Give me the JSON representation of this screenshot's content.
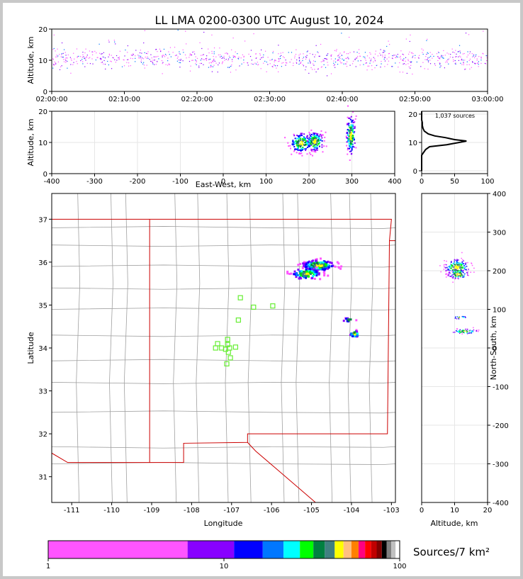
{
  "chart_data": {
    "title": "LL LMA 0200-0300 UTC August 10, 2024",
    "panels": [
      {
        "id": "time-altitude",
        "type": "scatter",
        "xlabel": "",
        "ylabel": "Altitude, km",
        "xticks": [
          "02:00:00",
          "02:10:00",
          "02:20:00",
          "02:30:00",
          "02:40:00",
          "02:50:00",
          "03:00:00"
        ],
        "xlim_minutes": [
          0,
          60
        ],
        "ylim": [
          0,
          20
        ],
        "yticks": [
          0,
          10,
          20
        ],
        "band_altitude_km": [
          6,
          16
        ],
        "band_center_km": 10.5,
        "grid": false
      },
      {
        "id": "eastwest-altitude",
        "type": "scatter",
        "xlabel": "East-West, km",
        "ylabel": "Altitude, km",
        "xlim": [
          -400,
          400
        ],
        "xticks": [
          -400,
          -300,
          -200,
          -100,
          0,
          100,
          200,
          300,
          400
        ],
        "ylim": [
          0,
          20
        ],
        "yticks": [
          0,
          10,
          20
        ],
        "grid": true,
        "clusters": [
          {
            "x": 180,
            "y": 10,
            "sx": 12,
            "sy": 1.5,
            "n": 160
          },
          {
            "x": 212,
            "y": 10.5,
            "sx": 10,
            "sy": 1.5,
            "n": 150
          },
          {
            "x": 296,
            "y": 12.5,
            "sx": 5,
            "sy": 3,
            "n": 150
          }
        ]
      },
      {
        "id": "altitude-histogram",
        "type": "line",
        "annotation": "1,037 sources",
        "xlim": [
          0,
          100
        ],
        "xticks": [
          0,
          50,
          100
        ],
        "ylim": [
          0,
          20
        ],
        "yticks": [
          0,
          10,
          20
        ],
        "profile": [
          {
            "alt": 0,
            "n": 0
          },
          {
            "alt": 5.5,
            "n": 0
          },
          {
            "alt": 6.5,
            "n": 3
          },
          {
            "alt": 7.5,
            "n": 6
          },
          {
            "alt": 8.5,
            "n": 12
          },
          {
            "alt": 9.2,
            "n": 38
          },
          {
            "alt": 10,
            "n": 57
          },
          {
            "alt": 10.5,
            "n": 68
          },
          {
            "alt": 11,
            "n": 50
          },
          {
            "alt": 11.7,
            "n": 36
          },
          {
            "alt": 12.3,
            "n": 20
          },
          {
            "alt": 13,
            "n": 10
          },
          {
            "alt": 14,
            "n": 4
          },
          {
            "alt": 15,
            "n": 2
          },
          {
            "alt": 16,
            "n": 1
          },
          {
            "alt": 17,
            "n": 1
          },
          {
            "alt": 18,
            "n": 0
          },
          {
            "alt": 21,
            "n": 0
          }
        ]
      },
      {
        "id": "plan-view",
        "type": "scatter",
        "xlabel": "Longitude",
        "ylabel": "Latitude",
        "xlim": [
          -111.5,
          -102.9
        ],
        "ylim": [
          30.4,
          37.6
        ],
        "xticks": [
          -111,
          -110,
          -109,
          -108,
          -107,
          -106,
          -105,
          -104,
          -103
        ],
        "yticks": [
          31,
          32,
          33,
          34,
          35,
          36,
          37
        ],
        "state_border_color": "#cc0000",
        "county_color": "#a0a0a0",
        "clusters": [
          {
            "lon": -104.85,
            "lat": 35.95,
            "slon": 0.2,
            "slat": 0.06,
            "n": 170
          },
          {
            "lon": -105.15,
            "lat": 35.75,
            "slon": 0.18,
            "slat": 0.06,
            "n": 110
          },
          {
            "lon": -103.95,
            "lat": 34.35,
            "slon": 0.06,
            "slat": 0.04,
            "n": 40
          },
          {
            "lon": -104.1,
            "lat": 34.68,
            "slon": 0.08,
            "slat": 0.02,
            "n": 14
          }
        ],
        "stations": [
          {
            "lon": -106.78,
            "lat": 35.17
          },
          {
            "lon": -106.45,
            "lat": 34.95
          },
          {
            "lon": -105.97,
            "lat": 34.98
          },
          {
            "lon": -106.83,
            "lat": 34.65
          },
          {
            "lon": -107.1,
            "lat": 34.2
          },
          {
            "lon": -107.35,
            "lat": 34.1
          },
          {
            "lon": -107.1,
            "lat": 34.08
          },
          {
            "lon": -107.4,
            "lat": 34.0
          },
          {
            "lon": -107.25,
            "lat": 34.0
          },
          {
            "lon": -107.15,
            "lat": 33.97
          },
          {
            "lon": -107.05,
            "lat": 34.0
          },
          {
            "lon": -106.9,
            "lat": 34.02
          },
          {
            "lon": -107.08,
            "lat": 33.9
          },
          {
            "lon": -107.03,
            "lat": 33.77
          },
          {
            "lon": -107.12,
            "lat": 33.63
          }
        ]
      },
      {
        "id": "altitude-northsouth",
        "type": "scatter",
        "xlabel": "Altitude, km",
        "ylabel": "North-South, km",
        "xlim": [
          0,
          20
        ],
        "xticks": [
          0,
          10,
          20
        ],
        "ylim": [
          -400,
          400
        ],
        "yticks": [
          -400,
          -300,
          -200,
          -100,
          0,
          100,
          200,
          300,
          400
        ],
        "grid": true,
        "clusters": [
          {
            "x": 10.5,
            "y": 210,
            "sx": 1.8,
            "sy": 10,
            "n": 200
          },
          {
            "x": 11,
            "y": 192,
            "sx": 1.5,
            "sy": 6,
            "n": 90
          },
          {
            "x": 13,
            "y": 44,
            "sx": 1.8,
            "sy": 3,
            "n": 60
          },
          {
            "x": 11.5,
            "y": 80,
            "sx": 1,
            "sy": 2,
            "n": 14
          }
        ]
      }
    ],
    "colorbar": {
      "label": "Sources/7 km²",
      "tick_labels": [
        "1",
        "10",
        "100"
      ],
      "colors": [
        "#ff55ff",
        "#8800ff",
        "#0000ff",
        "#0077ff",
        "#00ffff",
        "#00ff00",
        "#008040",
        "#408080",
        "#ffff00",
        "#ffc080",
        "#ff8000",
        "#ff0080",
        "#ff0000",
        "#c00000",
        "#800000",
        "#000000",
        "#808080",
        "#c0c0c0",
        "#ffffff"
      ],
      "scale": "log"
    }
  }
}
